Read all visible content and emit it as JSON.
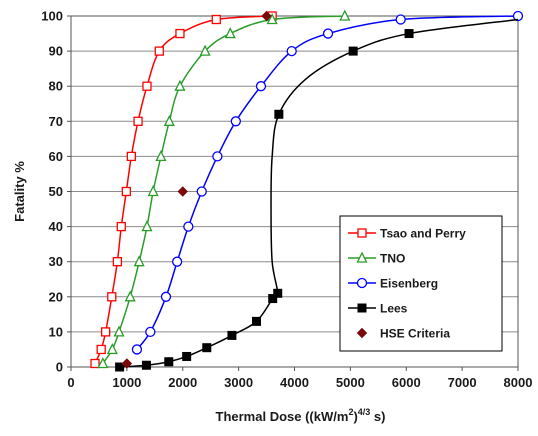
{
  "chart_data": {
    "type": "line",
    "xlabel_main": "Thermal Dose ((kW/m",
    "xlabel_sup1": "2",
    "xlabel_mid": ")",
    "xlabel_sup2": "4/3",
    "xlabel_end": " s)",
    "ylabel": "Fatality %",
    "xlim": [
      0,
      8000
    ],
    "ylim": [
      0,
      100
    ],
    "x_ticks": [
      "0",
      "1000",
      "2000",
      "3000",
      "4000",
      "5000",
      "6000",
      "7000",
      "8000"
    ],
    "y_ticks": [
      "0",
      "10",
      "20",
      "30",
      "40",
      "50",
      "60",
      "70",
      "80",
      "90",
      "100"
    ],
    "grid": true,
    "legend_position": "lower-right",
    "series": [
      {
        "name": "Tsao and Perry",
        "color": "#ff0000",
        "marker": "open-square",
        "points": [
          [
            430,
            1
          ],
          [
            540,
            5
          ],
          [
            620,
            10
          ],
          [
            730,
            20
          ],
          [
            830,
            30
          ],
          [
            900,
            40
          ],
          [
            990,
            50
          ],
          [
            1080,
            60
          ],
          [
            1200,
            70
          ],
          [
            1360,
            80
          ],
          [
            1580,
            90
          ],
          [
            1950,
            95
          ],
          [
            2600,
            99
          ],
          [
            3600,
            100
          ]
        ]
      },
      {
        "name": "TNO",
        "color": "#2a9d2a",
        "marker": "open-triangle",
        "points": [
          [
            570,
            1
          ],
          [
            740,
            5
          ],
          [
            860,
            10
          ],
          [
            1060,
            20
          ],
          [
            1220,
            30
          ],
          [
            1360,
            40
          ],
          [
            1470,
            50
          ],
          [
            1610,
            60
          ],
          [
            1760,
            70
          ],
          [
            1950,
            80
          ],
          [
            2400,
            90
          ],
          [
            2850,
            95
          ],
          [
            3600,
            99
          ],
          [
            4900,
            100
          ]
        ]
      },
      {
        "name": "Eisenberg",
        "color": "#0000ff",
        "marker": "open-circle",
        "points": [
          [
            1180,
            5
          ],
          [
            1420,
            10
          ],
          [
            1700,
            20
          ],
          [
            1900,
            30
          ],
          [
            2100,
            40
          ],
          [
            2340,
            50
          ],
          [
            2620,
            60
          ],
          [
            2950,
            70
          ],
          [
            3400,
            80
          ],
          [
            3950,
            90
          ],
          [
            4600,
            95
          ],
          [
            5900,
            99
          ],
          [
            8000,
            100
          ]
        ]
      },
      {
        "name": "Lees",
        "color": "#000000",
        "marker": "filled-square",
        "points": [
          [
            870,
            0
          ],
          [
            1350,
            0.5
          ],
          [
            1750,
            1.5
          ],
          [
            2070,
            3
          ],
          [
            2430,
            5.5
          ],
          [
            2880,
            9
          ],
          [
            3320,
            13
          ],
          [
            3610,
            19.5
          ],
          [
            3700,
            21
          ],
          [
            3600,
            30
          ],
          [
            3580,
            45
          ],
          [
            3600,
            60
          ],
          [
            3720,
            72
          ],
          [
            4200,
            82
          ],
          [
            5050,
            90
          ],
          [
            6050,
            95
          ],
          [
            8000,
            99
          ]
        ],
        "markers_at": [
          [
            870,
            0
          ],
          [
            1350,
            0.5
          ],
          [
            1750,
            1.5
          ],
          [
            2070,
            3
          ],
          [
            2430,
            5.5
          ],
          [
            2880,
            9
          ],
          [
            3320,
            13
          ],
          [
            3610,
            19.5
          ],
          [
            3700,
            21
          ],
          [
            3720,
            72
          ],
          [
            5050,
            90
          ],
          [
            6050,
            95
          ]
        ]
      },
      {
        "name": "HSE Criteria",
        "color": "#7a0a0a",
        "marker": "filled-diamond",
        "points": [
          [
            1000,
            1
          ],
          [
            2000,
            50
          ],
          [
            3500,
            100
          ]
        ]
      }
    ]
  }
}
